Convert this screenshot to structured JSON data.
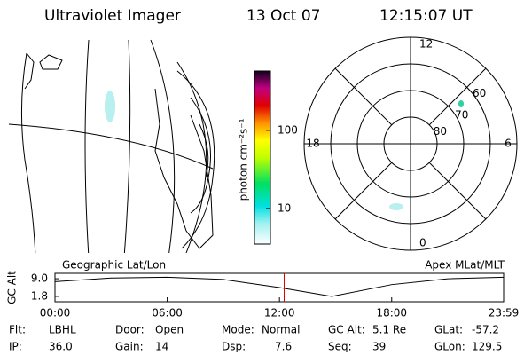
{
  "header": {
    "title": "Ultraviolet Imager",
    "date": "13 Oct 07",
    "time": "12:15:07 UT"
  },
  "colorbar": {
    "label": "photon cm⁻²s⁻¹",
    "log": true,
    "lim": [
      3.5,
      575
    ],
    "ticks": [
      10,
      100
    ]
  },
  "polar": {
    "mlt_ticks": [
      12,
      18,
      6,
      0
    ],
    "lat_ticks": [
      80,
      70,
      60
    ],
    "lat_min": 50
  },
  "map_titles": {
    "left": "Geographic Lat/Lon",
    "right": "Apex MLat/MLT"
  },
  "altitude": {
    "ylabel": "GC Alt",
    "ylim": [
      -0.4,
      11.2
    ],
    "yticks": [
      {
        "value": 9,
        "label": "9.0"
      },
      1.8
    ],
    "xlim": [
      0,
      23.983
    ],
    "xticks": [
      {
        "value": 0,
        "label": "00:00"
      },
      {
        "value": 6,
        "label": "06:00"
      },
      {
        "value": 12,
        "label": "12:00"
      },
      {
        "value": 18,
        "label": "18:00"
      },
      {
        "value": 23.983,
        "label": "23:59"
      }
    ],
    "x": [
      0,
      3,
      6,
      9,
      12,
      14.8,
      18,
      21,
      23.983
    ],
    "values": [
      7.8,
      9.3,
      9.6,
      8.7,
      5.4,
      1.8,
      6.6,
      9.0,
      9.6
    ],
    "marker_x": 12.252,
    "marker_color": "#e00000"
  },
  "status": [
    [
      {
        "label": "Flt:",
        "value": "LBHL"
      },
      {
        "label": "IP:",
        "value": "36.0"
      }
    ],
    [
      {
        "label": "Door:",
        "value": "Open"
      },
      {
        "label": "Gain:",
        "value": "14"
      }
    ],
    [
      {
        "label": "Mode:",
        "value": "Normal"
      },
      {
        "label": "Dsp:",
        "value": "7.6"
      }
    ],
    [
      {
        "label": "GC Alt:",
        "value": "5.1 Re"
      },
      {
        "label": "Seq:",
        "value": "39"
      }
    ],
    [
      {
        "label": "GLat:",
        "value": "-57.2"
      },
      {
        "label": "GLon:",
        "value": "129.5"
      }
    ]
  ]
}
